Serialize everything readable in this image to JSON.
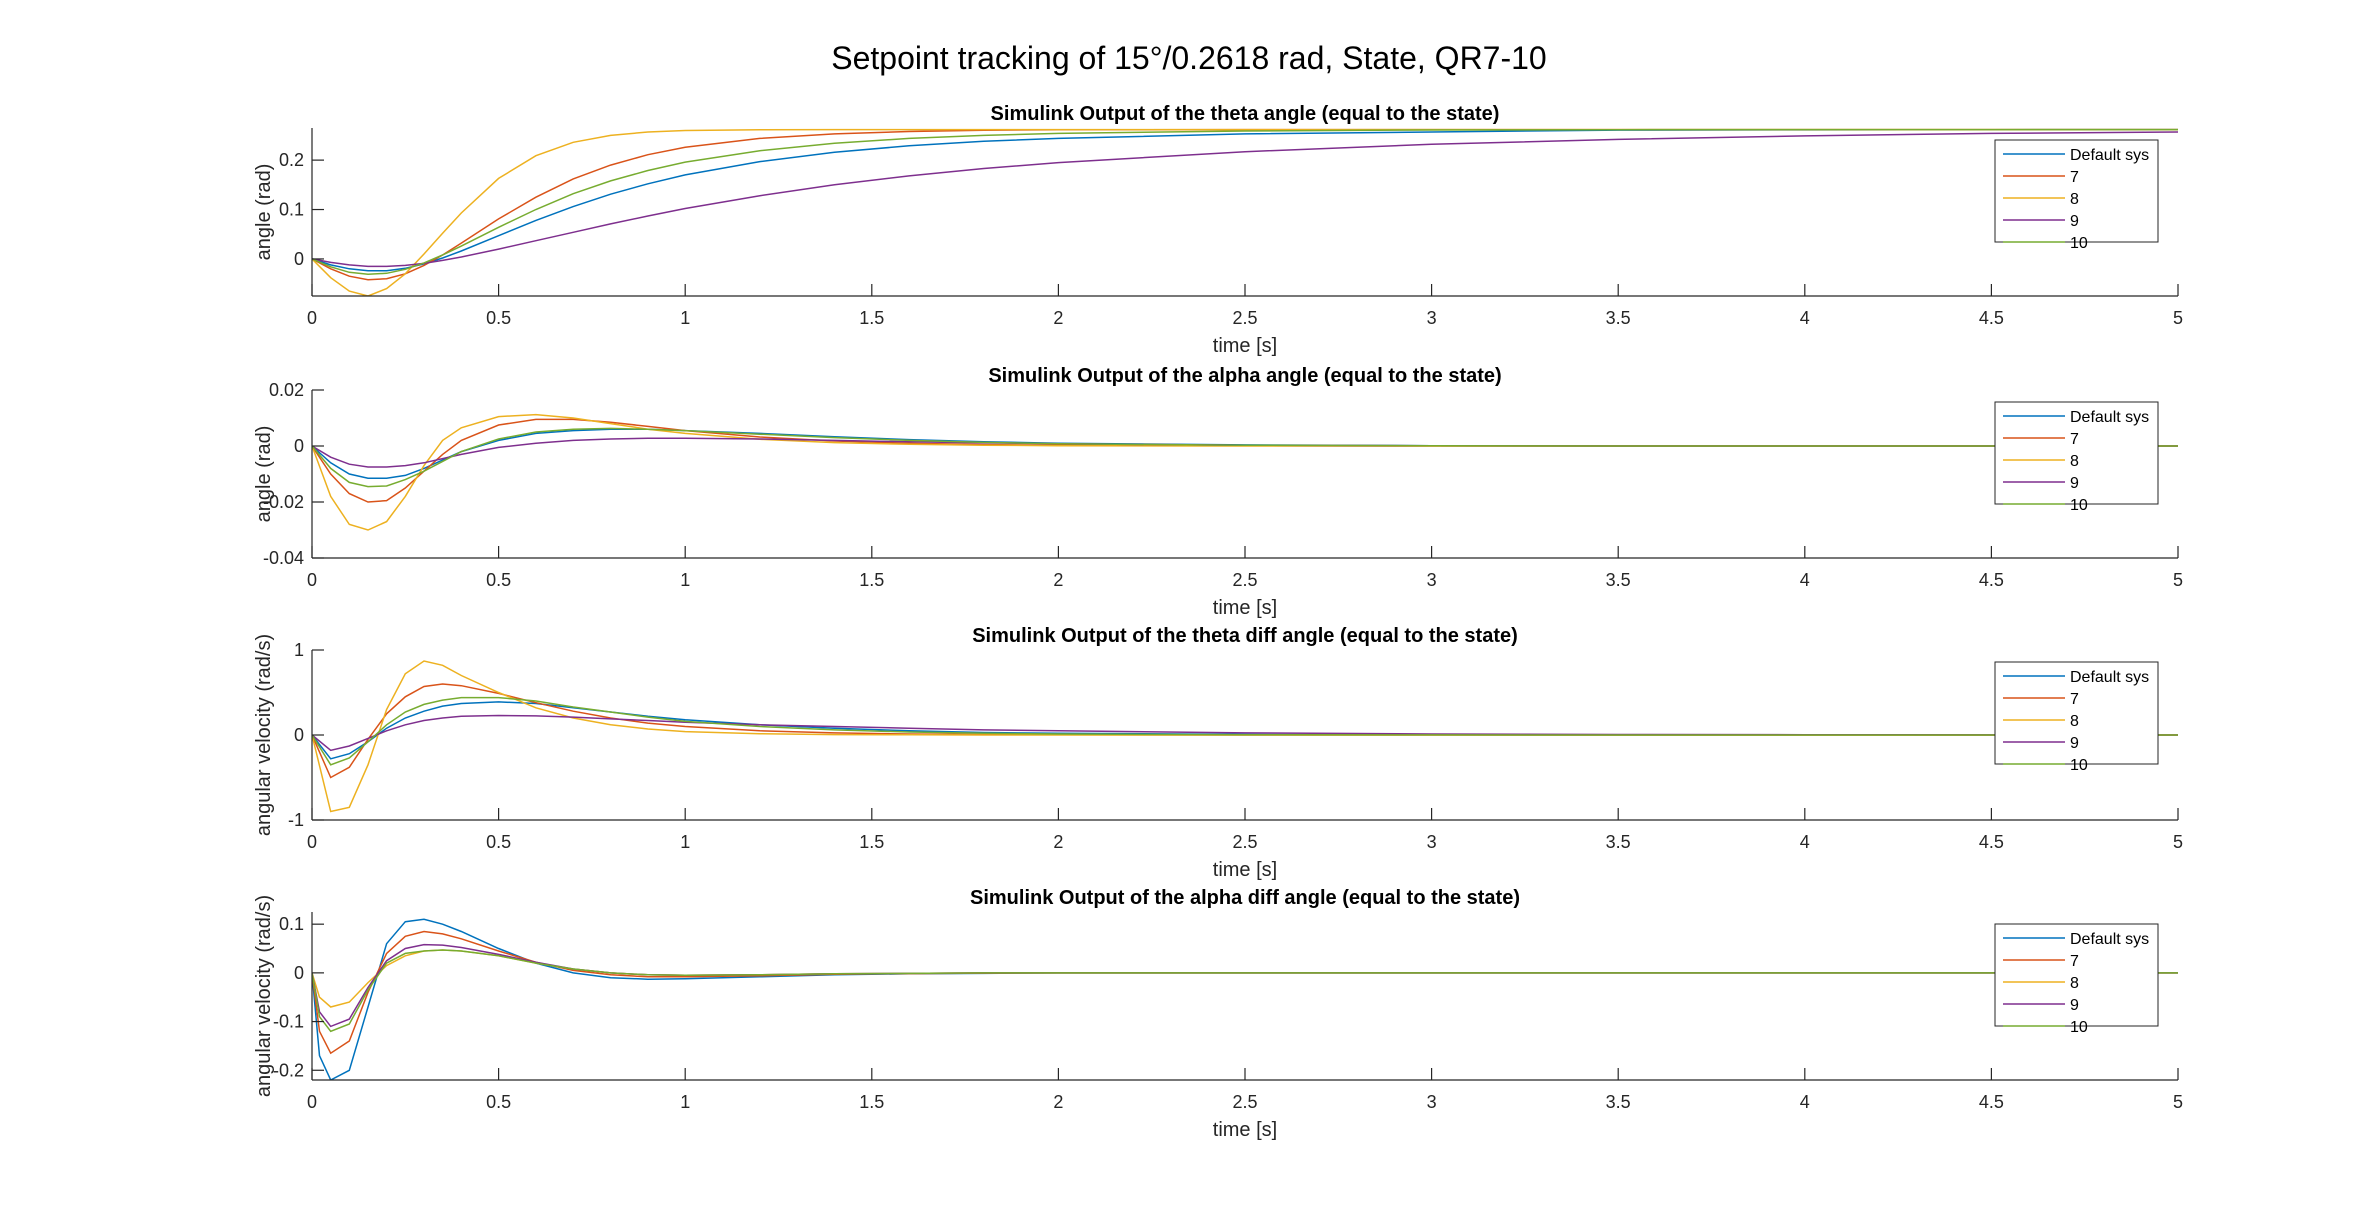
{
  "figure": {
    "title": "Setpoint tracking of 15°/0.2618 rad, State, QR7-10"
  },
  "colors": {
    "Default sys": "#0072BD",
    "7": "#D95319",
    "8": "#EDB120",
    "9": "#7E2F8E",
    "10": "#77AC30"
  },
  "chart_data": [
    {
      "type": "line",
      "title": "Simulink Output of the theta angle (equal to the state)",
      "xlabel": "time [s]",
      "ylabel": "angle (rad)",
      "xlim": [
        0,
        5
      ],
      "ylim": [
        -0.075,
        0.265
      ],
      "xticks": [
        0,
        0.5,
        1,
        1.5,
        2,
        2.5,
        3,
        3.5,
        4,
        4.5,
        5
      ],
      "yticks": [
        0,
        0.1,
        0.2
      ],
      "xticklabels": [
        "0",
        "0.5",
        "1",
        "1.5",
        "2",
        "2.5",
        "3",
        "3.5",
        "4",
        "4.5",
        "5"
      ],
      "yticklabels": [
        "0",
        "0.1",
        "0.2"
      ],
      "legend_location": "right",
      "x": [
        0,
        0.05,
        0.1,
        0.15,
        0.2,
        0.25,
        0.3,
        0.35,
        0.4,
        0.5,
        0.6,
        0.7,
        0.8,
        0.9,
        1.0,
        1.2,
        1.4,
        1.6,
        1.8,
        2.0,
        2.5,
        3.0,
        3.5,
        4.0,
        4.5,
        5.0
      ],
      "series": [
        {
          "name": "Default sys",
          "values": [
            0,
            -0.012,
            -0.02,
            -0.024,
            -0.024,
            -0.019,
            -0.01,
            0.002,
            0.016,
            0.047,
            0.078,
            0.106,
            0.131,
            0.152,
            0.17,
            0.197,
            0.216,
            0.229,
            0.238,
            0.244,
            0.253,
            0.257,
            0.2608,
            0.2612,
            0.2615,
            0.2617
          ]
        },
        {
          "name": "7",
          "values": [
            0,
            -0.02,
            -0.035,
            -0.042,
            -0.04,
            -0.03,
            -0.013,
            0.008,
            0.032,
            0.081,
            0.125,
            0.162,
            0.19,
            0.211,
            0.226,
            0.244,
            0.253,
            0.258,
            0.2605,
            0.2613,
            0.2618,
            0.2618,
            0.2618,
            0.2618,
            0.2618,
            0.2618
          ]
        },
        {
          "name": "8",
          "values": [
            0,
            -0.038,
            -0.065,
            -0.075,
            -0.06,
            -0.03,
            0.01,
            0.052,
            0.093,
            0.163,
            0.209,
            0.236,
            0.25,
            0.257,
            0.26,
            0.2615,
            0.2618,
            0.2618,
            0.2618,
            0.2618,
            0.2618,
            0.2618,
            0.2618,
            0.2618,
            0.2618,
            0.2618
          ]
        },
        {
          "name": "9",
          "values": [
            0,
            -0.007,
            -0.012,
            -0.015,
            -0.015,
            -0.013,
            -0.009,
            -0.003,
            0.004,
            0.02,
            0.037,
            0.054,
            0.071,
            0.087,
            0.102,
            0.128,
            0.15,
            0.168,
            0.183,
            0.195,
            0.217,
            0.232,
            0.242,
            0.249,
            0.254,
            0.257
          ]
        },
        {
          "name": "10",
          "values": [
            0,
            -0.016,
            -0.027,
            -0.031,
            -0.029,
            -0.021,
            -0.008,
            0.008,
            0.026,
            0.064,
            0.1,
            0.132,
            0.158,
            0.179,
            0.196,
            0.219,
            0.234,
            0.244,
            0.25,
            0.254,
            0.259,
            0.261,
            0.2615,
            0.2617,
            0.2618,
            0.2618
          ]
        }
      ]
    },
    {
      "type": "line",
      "title": "Simulink Output of the alpha angle (equal to the state)",
      "xlabel": "time [s]",
      "ylabel": "angle (rad)",
      "xlim": [
        0,
        5
      ],
      "ylim": [
        -0.04,
        0.02
      ],
      "xticks": [
        0,
        0.5,
        1,
        1.5,
        2,
        2.5,
        3,
        3.5,
        4,
        4.5,
        5
      ],
      "yticks": [
        -0.04,
        -0.02,
        0,
        0.02
      ],
      "xticklabels": [
        "0",
        "0.5",
        "1",
        "1.5",
        "2",
        "2.5",
        "3",
        "3.5",
        "4",
        "4.5",
        "5"
      ],
      "yticklabels": [
        "-0.04",
        "-0.02",
        "0",
        "0.02"
      ],
      "legend_location": "right",
      "x": [
        0,
        0.05,
        0.1,
        0.15,
        0.2,
        0.25,
        0.3,
        0.35,
        0.4,
        0.5,
        0.6,
        0.7,
        0.8,
        0.9,
        1.0,
        1.2,
        1.4,
        1.6,
        1.8,
        2.0,
        2.5,
        3.0,
        3.5,
        4.0,
        4.5,
        5.0
      ],
      "series": [
        {
          "name": "Default sys",
          "values": [
            0,
            -0.006,
            -0.01,
            -0.0115,
            -0.0115,
            -0.0105,
            -0.008,
            -0.005,
            -0.002,
            0.002,
            0.0045,
            0.0055,
            0.006,
            0.006,
            0.0055,
            0.0045,
            0.0033,
            0.0023,
            0.0015,
            0.001,
            0.0004,
            0.0001,
            0,
            0,
            0,
            0
          ]
        },
        {
          "name": "7",
          "values": [
            0,
            -0.01,
            -0.017,
            -0.02,
            -0.0195,
            -0.015,
            -0.009,
            -0.003,
            0.002,
            0.0075,
            0.0095,
            0.0095,
            0.0085,
            0.007,
            0.0055,
            0.0032,
            0.0018,
            0.001,
            0.0005,
            0.0003,
            0.0001,
            0,
            0,
            0,
            0,
            0
          ]
        },
        {
          "name": "8",
          "values": [
            0,
            -0.018,
            -0.028,
            -0.03,
            -0.027,
            -0.018,
            -0.007,
            0.002,
            0.0065,
            0.0105,
            0.0112,
            0.01,
            0.008,
            0.006,
            0.0045,
            0.0024,
            0.0012,
            0.0006,
            0.0003,
            0.0001,
            0,
            0,
            0,
            0,
            0,
            0
          ]
        },
        {
          "name": "9",
          "values": [
            0,
            -0.004,
            -0.0065,
            -0.0075,
            -0.0075,
            -0.007,
            -0.006,
            -0.0045,
            -0.003,
            -0.0005,
            0.001,
            0.002,
            0.0025,
            0.0028,
            0.0028,
            0.0025,
            0.002,
            0.0015,
            0.0011,
            0.0008,
            0.0003,
            0.0001,
            0,
            0,
            0,
            0
          ]
        },
        {
          "name": "10",
          "values": [
            0,
            -0.008,
            -0.013,
            -0.0145,
            -0.0143,
            -0.012,
            -0.009,
            -0.0055,
            -0.002,
            0.0025,
            0.005,
            0.006,
            0.0063,
            0.006,
            0.0055,
            0.0042,
            0.003,
            0.002,
            0.0013,
            0.0008,
            0.0003,
            0.0001,
            0,
            0,
            0,
            0
          ]
        }
      ]
    },
    {
      "type": "line",
      "title": "Simulink Output of the theta diff angle (equal to the state)",
      "xlabel": "time [s]",
      "ylabel": "angular velocity (rad/s)",
      "xlim": [
        0,
        5
      ],
      "ylim": [
        -1,
        1
      ],
      "xticks": [
        0,
        0.5,
        1,
        1.5,
        2,
        2.5,
        3,
        3.5,
        4,
        4.5,
        5
      ],
      "yticks": [
        -1,
        0,
        1
      ],
      "xticklabels": [
        "0",
        "0.5",
        "1",
        "1.5",
        "2",
        "2.5",
        "3",
        "3.5",
        "4",
        "4.5",
        "5"
      ],
      "yticklabels": [
        "-1",
        "0",
        "1"
      ],
      "legend_location": "right",
      "x": [
        0,
        0.05,
        0.1,
        0.15,
        0.2,
        0.25,
        0.3,
        0.35,
        0.4,
        0.5,
        0.6,
        0.7,
        0.8,
        0.9,
        1.0,
        1.2,
        1.4,
        1.6,
        1.8,
        2.0,
        2.5,
        3.0,
        3.5,
        4.0,
        4.5,
        5.0
      ],
      "series": [
        {
          "name": "Default sys",
          "values": [
            0,
            -0.28,
            -0.22,
            -0.08,
            0.08,
            0.2,
            0.28,
            0.34,
            0.37,
            0.39,
            0.37,
            0.32,
            0.27,
            0.22,
            0.18,
            0.12,
            0.08,
            0.05,
            0.03,
            0.02,
            0.007,
            0.002,
            0,
            0,
            0,
            0
          ]
        },
        {
          "name": "7",
          "values": [
            0,
            -0.5,
            -0.38,
            -0.05,
            0.25,
            0.45,
            0.57,
            0.6,
            0.58,
            0.49,
            0.38,
            0.28,
            0.2,
            0.14,
            0.1,
            0.05,
            0.025,
            0.012,
            0.006,
            0.003,
            0,
            0,
            0,
            0,
            0,
            0
          ]
        },
        {
          "name": "8",
          "values": [
            0,
            -0.9,
            -0.85,
            -0.35,
            0.3,
            0.72,
            0.87,
            0.82,
            0.7,
            0.5,
            0.32,
            0.2,
            0.12,
            0.07,
            0.04,
            0.015,
            0.005,
            0.002,
            0,
            0,
            0,
            0,
            0,
            0,
            0,
            0
          ]
        },
        {
          "name": "9",
          "values": [
            0,
            -0.18,
            -0.13,
            -0.04,
            0.05,
            0.12,
            0.17,
            0.2,
            0.22,
            0.23,
            0.225,
            0.21,
            0.19,
            0.17,
            0.15,
            0.12,
            0.1,
            0.08,
            0.06,
            0.05,
            0.025,
            0.012,
            0.006,
            0.003,
            0.001,
            0
          ]
        },
        {
          "name": "10",
          "values": [
            0,
            -0.35,
            -0.27,
            -0.08,
            0.12,
            0.27,
            0.36,
            0.41,
            0.44,
            0.44,
            0.4,
            0.33,
            0.27,
            0.21,
            0.16,
            0.1,
            0.06,
            0.035,
            0.02,
            0.012,
            0.004,
            0.001,
            0,
            0,
            0,
            0
          ]
        }
      ]
    },
    {
      "type": "line",
      "title": "Simulink Output of the alpha diff angle (equal to the state)",
      "xlabel": "time [s]",
      "ylabel": "angular velocity (rad/s)",
      "xlim": [
        0,
        5
      ],
      "ylim": [
        -0.22,
        0.125
      ],
      "xticks": [
        0,
        0.5,
        1,
        1.5,
        2,
        2.5,
        3,
        3.5,
        4,
        4.5,
        5
      ],
      "yticks": [
        -0.2,
        -0.1,
        0,
        0.1
      ],
      "xticklabels": [
        "0",
        "0.5",
        "1",
        "1.5",
        "2",
        "2.5",
        "3",
        "3.5",
        "4",
        "4.5",
        "5"
      ],
      "yticklabels": [
        "-0.2",
        "-0.1",
        "0",
        "0.1"
      ],
      "legend_location": "right",
      "x": [
        0,
        0.02,
        0.05,
        0.1,
        0.15,
        0.2,
        0.25,
        0.3,
        0.35,
        0.4,
        0.5,
        0.6,
        0.7,
        0.8,
        0.9,
        1.0,
        1.2,
        1.4,
        1.6,
        1.8,
        2.0,
        2.5,
        3.0,
        3.5,
        4.0,
        4.5,
        5.0
      ],
      "series": [
        {
          "name": "Default sys",
          "values": [
            0,
            -0.17,
            -0.22,
            -0.2,
            -0.07,
            0.06,
            0.105,
            0.11,
            0.1,
            0.085,
            0.05,
            0.02,
            0,
            -0.01,
            -0.013,
            -0.012,
            -0.008,
            -0.004,
            -0.002,
            -0.001,
            0,
            0,
            0,
            0,
            0,
            0,
            0
          ]
        },
        {
          "name": "7",
          "values": [
            0,
            -0.12,
            -0.165,
            -0.14,
            -0.04,
            0.04,
            0.075,
            0.085,
            0.08,
            0.07,
            0.045,
            0.022,
            0.005,
            -0.004,
            -0.008,
            -0.008,
            -0.006,
            -0.003,
            -0.0015,
            -0.0005,
            0,
            0,
            0,
            0,
            0,
            0,
            0
          ]
        },
        {
          "name": "8",
          "values": [
            0,
            -0.05,
            -0.07,
            -0.06,
            -0.02,
            0.015,
            0.035,
            0.045,
            0.047,
            0.045,
            0.035,
            0.02,
            0.008,
            0,
            -0.004,
            -0.005,
            -0.004,
            -0.002,
            -0.001,
            0,
            0,
            0,
            0,
            0,
            0,
            0,
            0
          ]
        },
        {
          "name": "9",
          "values": [
            0,
            -0.08,
            -0.11,
            -0.095,
            -0.03,
            0.025,
            0.05,
            0.058,
            0.057,
            0.052,
            0.038,
            0.022,
            0.008,
            0,
            -0.004,
            -0.005,
            -0.004,
            -0.002,
            -0.001,
            0,
            0,
            0,
            0,
            0,
            0,
            0,
            0
          ]
        },
        {
          "name": "10",
          "values": [
            0,
            -0.09,
            -0.12,
            -0.105,
            -0.035,
            0.02,
            0.04,
            0.045,
            0.047,
            0.045,
            0.035,
            0.02,
            0.008,
            0,
            -0.004,
            -0.005,
            -0.004,
            -0.002,
            -0.001,
            0,
            0,
            0,
            0,
            0,
            0,
            0,
            0
          ]
        }
      ]
    }
  ]
}
